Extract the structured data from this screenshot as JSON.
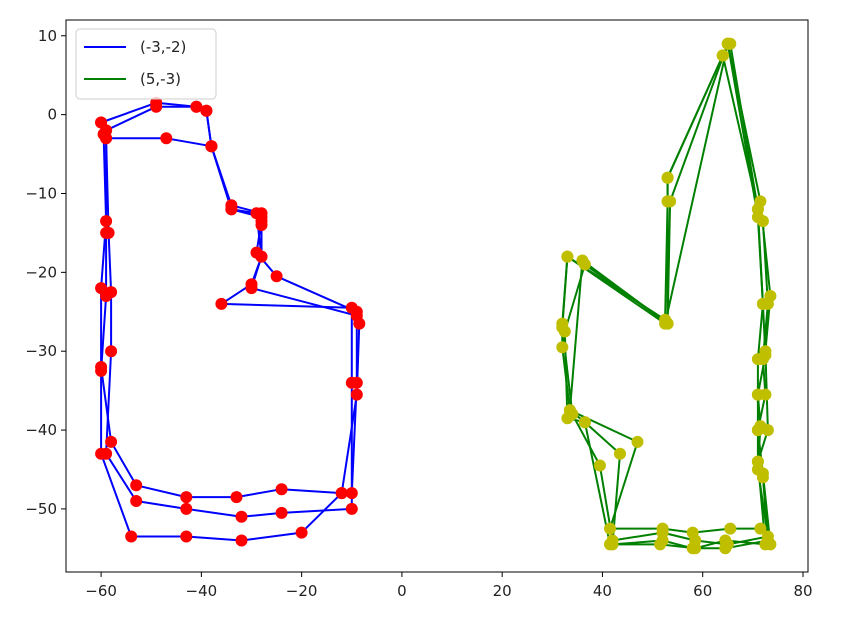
{
  "chart_data": {
    "type": "scatter",
    "title": "",
    "xlabel": "",
    "ylabel": "",
    "xlim": [
      -67,
      81
    ],
    "ylim": [
      -58,
      12
    ],
    "grid": false,
    "legend_placement": "top-left",
    "x_ticks": [
      -60,
      -40,
      -20,
      0,
      20,
      40,
      60,
      80
    ],
    "x_tick_labels": [
      "−60",
      "−40",
      "−20",
      "0",
      "20",
      "40",
      "60",
      "80"
    ],
    "y_ticks": [
      10,
      0,
      -10,
      -20,
      -30,
      -40,
      -50
    ],
    "y_tick_labels": [
      "10",
      "0",
      "−10",
      "−20",
      "−30",
      "−40",
      "−50"
    ],
    "series": [
      {
        "name": "(-3,-2)",
        "line_color": "#0000ff",
        "marker_color": "#ff0000",
        "paths": [
          [
            [
              -60,
              -1
            ],
            [
              -49,
              1.5
            ],
            [
              -41,
              1
            ],
            [
              -39,
              0.5
            ],
            [
              -38,
              -4
            ],
            [
              -34,
              -11.5
            ],
            [
              -28,
              -12.5
            ],
            [
              -28,
              -13.5
            ],
            [
              -29,
              -17.5
            ],
            [
              -25,
              -20.5
            ],
            [
              -9,
              -25
            ],
            [
              -8.5,
              -26.5
            ],
            [
              -9,
              -35.5
            ],
            [
              -12,
              -48
            ],
            [
              -24,
              -47.5
            ],
            [
              -33,
              -48.5
            ],
            [
              -43,
              -48.5
            ],
            [
              -53,
              -47
            ],
            [
              -58,
              -41.5
            ],
            [
              -60,
              -32
            ],
            [
              -60,
              -22
            ],
            [
              -59,
              -13.5
            ],
            [
              -59.5,
              -2.5
            ],
            [
              -60,
              -1
            ]
          ],
          [
            [
              -59,
              -2
            ],
            [
              -49,
              1
            ],
            [
              -41,
              1
            ],
            [
              -39,
              0.5
            ],
            [
              -38,
              -4
            ],
            [
              -34,
              -12
            ],
            [
              -28,
              -13
            ],
            [
              -28,
              -14
            ],
            [
              -28,
              -18
            ],
            [
              -30,
              -22
            ],
            [
              -9,
              -25.5
            ],
            [
              -9,
              -34
            ],
            [
              -10,
              -48
            ],
            [
              -12,
              -48
            ],
            [
              -20,
              -53
            ],
            [
              -32,
              -54
            ],
            [
              -43,
              -53.5
            ],
            [
              -54,
              -53.5
            ],
            [
              -60,
              -43
            ],
            [
              -60,
              -32.5
            ],
            [
              -59,
              -23
            ],
            [
              -59,
              -15
            ],
            [
              -59,
              -2
            ]
          ],
          [
            [
              -59,
              -3
            ],
            [
              -47,
              -3
            ],
            [
              -38,
              -4
            ],
            [
              -34,
              -12
            ],
            [
              -29,
              -12.5
            ],
            [
              -28,
              -18
            ],
            [
              -30,
              -21.5
            ],
            [
              -36,
              -24
            ],
            [
              -10,
              -24.5
            ],
            [
              -10,
              -34
            ],
            [
              -10,
              -50
            ],
            [
              -24,
              -50.5
            ],
            [
              -32,
              -51
            ],
            [
              -43,
              -50
            ],
            [
              -53,
              -49
            ],
            [
              -59,
              -43
            ],
            [
              -58,
              -30
            ],
            [
              -58,
              -22.5
            ],
            [
              -58.5,
              -15
            ],
            [
              -59,
              -3
            ]
          ]
        ]
      },
      {
        "name": "(5,-3)",
        "line_color": "#008000",
        "marker_color": "#bfbf00",
        "paths": [
          [
            [
              64,
              7.5
            ],
            [
              53,
              -8
            ],
            [
              53,
              -11
            ],
            [
              52.5,
              -26
            ],
            [
              33,
              -18
            ],
            [
              32,
              -26.5
            ],
            [
              32,
              -29.5
            ],
            [
              33.5,
              -37.5
            ],
            [
              47,
              -41.5
            ],
            [
              41.5,
              -52.5
            ],
            [
              52,
              -52.5
            ],
            [
              58,
              -53
            ],
            [
              65.5,
              -52.5
            ],
            [
              71.5,
              -52.5
            ],
            [
              73.5,
              -54.5
            ],
            [
              72,
              -45.5
            ],
            [
              71,
              -40
            ],
            [
              72.5,
              -35.5
            ],
            [
              72,
              -31
            ],
            [
              73,
              -24
            ],
            [
              72,
              -13.5
            ],
            [
              71,
              -12
            ],
            [
              65.5,
              9
            ],
            [
              64,
              7.5
            ]
          ],
          [
            [
              65,
              9
            ],
            [
              53.5,
              -11
            ],
            [
              53,
              -26.5
            ],
            [
              36.5,
              -19
            ],
            [
              32.5,
              -27.5
            ],
            [
              33,
              -38.5
            ],
            [
              36.5,
              -39
            ],
            [
              41.5,
              -54.5
            ],
            [
              51.5,
              -54.5
            ],
            [
              58.5,
              -55
            ],
            [
              64.5,
              -54
            ],
            [
              72.5,
              -54.5
            ],
            [
              71,
              -44
            ],
            [
              73,
              -40
            ],
            [
              72.5,
              -30
            ],
            [
              73.5,
              -23
            ],
            [
              71.5,
              -11
            ],
            [
              65,
              9
            ]
          ],
          [
            [
              65,
              9
            ],
            [
              52.5,
              -26.5
            ],
            [
              33,
              -18
            ],
            [
              32,
              -27
            ],
            [
              34,
              -38
            ],
            [
              39.5,
              -44.5
            ],
            [
              42,
              -54
            ],
            [
              52,
              -53
            ],
            [
              58.5,
              -54
            ],
            [
              65,
              -54.5
            ],
            [
              73,
              -53.5
            ],
            [
              71,
              -45
            ],
            [
              71.5,
              -39.5
            ],
            [
              71,
              -35.5
            ],
            [
              72.5,
              -30.5
            ],
            [
              72,
              -24
            ],
            [
              71,
              -13
            ],
            [
              65,
              9
            ]
          ],
          [
            [
              64,
              7.5
            ],
            [
              71,
              -12
            ],
            [
              72,
              -24
            ],
            [
              71,
              -31
            ],
            [
              71,
              -35.5
            ],
            [
              71,
              -40
            ],
            [
              71,
              -44
            ],
            [
              72,
              -46
            ],
            [
              73,
              -54
            ],
            [
              64.5,
              -55
            ],
            [
              58,
              -55
            ],
            [
              52,
              -54
            ],
            [
              42,
              -54.5
            ],
            [
              43.5,
              -43
            ],
            [
              36.5,
              -39
            ],
            [
              33.5,
              -37.5
            ],
            [
              36,
              -18.5
            ],
            [
              53,
              -26.5
            ],
            [
              53,
              -11
            ],
            [
              53,
              -8
            ],
            [
              64,
              7.5
            ]
          ]
        ]
      }
    ]
  }
}
